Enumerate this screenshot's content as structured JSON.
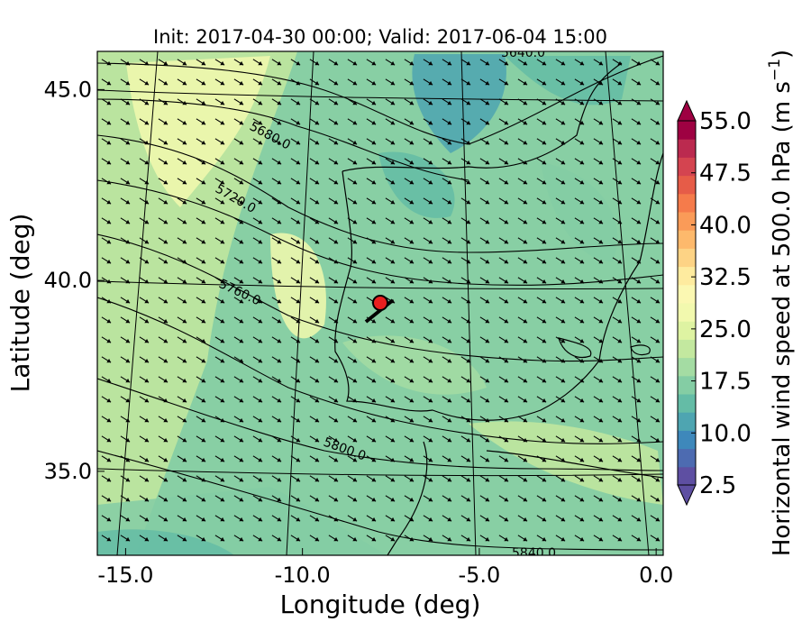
{
  "chart_data": {
    "type": "heatmap",
    "title": "Init: 2017-04-30 00:00; Valid: 2017-06-04 15:00",
    "xlabel": "Longitude (deg)",
    "ylabel": "Latitude (deg)",
    "xlim": [
      -15.8,
      0.2
    ],
    "ylim": [
      32.8,
      46.0
    ],
    "x_ticks": [
      {
        "value": -15,
        "label": "-15.0"
      },
      {
        "value": -10,
        "label": "-10.0"
      },
      {
        "value": -5,
        "label": "-5.0"
      },
      {
        "value": 0,
        "label": "0.0"
      }
    ],
    "y_ticks": [
      {
        "value": 45,
        "label": "45.0"
      },
      {
        "value": 40,
        "label": "40.0"
      },
      {
        "value": 35,
        "label": "35.0"
      }
    ],
    "grid": true,
    "colorbar": {
      "label": "Horizontal wind speed at 500.0 hPa (m s",
      "unit_superscript": "−1",
      "label_close": ")",
      "levels": [
        2.5,
        55.0
      ],
      "step": 2.5,
      "extend": "both",
      "ticks": [
        "55.0",
        "47.5",
        "40.0",
        "32.5",
        "25.0",
        "17.5",
        "10.0",
        "2.5"
      ],
      "colors": [
        "#5e4fa2",
        "#4d6bb1",
        "#3e88bb",
        "#4ea5b1",
        "#64bca6",
        "#84cda4",
        "#a4dca3",
        "#c3e89f",
        "#def3a2",
        "#f2f9ae",
        "#fbf8b2",
        "#feeb9f",
        "#fdd385",
        "#fdb96c",
        "#fa9b58",
        "#f57b4b",
        "#e65c48",
        "#d44450",
        "#bb2a4f",
        "#9e0142"
      ]
    },
    "contours": [
      {
        "label": "5640.0"
      },
      {
        "label": "5680.0"
      },
      {
        "label": "5720.0"
      },
      {
        "label": "5760.0"
      },
      {
        "label": "5800.0"
      },
      {
        "label": "5840.0"
      }
    ],
    "marker": {
      "lon": -7.6,
      "lat": 39.3,
      "color": "#e8201f"
    },
    "vector_field": {
      "direction": "from northwest to southeast",
      "color": "#000000"
    }
  }
}
